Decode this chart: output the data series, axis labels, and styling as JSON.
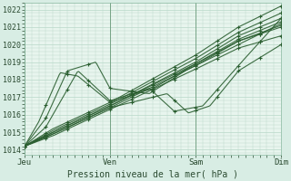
{
  "bg_color": "#d8ede4",
  "plot_bg": "#e8f5ee",
  "grid_color": "#b8d8c8",
  "line_color": "#2a5e30",
  "title": "Pression niveau de la mer( hPa )",
  "ylabel_vals": [
    1014,
    1015,
    1016,
    1017,
    1018,
    1019,
    1020,
    1021,
    1022
  ],
  "ylim": [
    1013.7,
    1022.4
  ],
  "xlim": [
    0,
    72
  ],
  "xtick_positions": [
    0,
    24,
    48,
    72
  ],
  "xtick_labels": [
    "Jeu",
    "Ven",
    "Sam",
    "Dim"
  ]
}
